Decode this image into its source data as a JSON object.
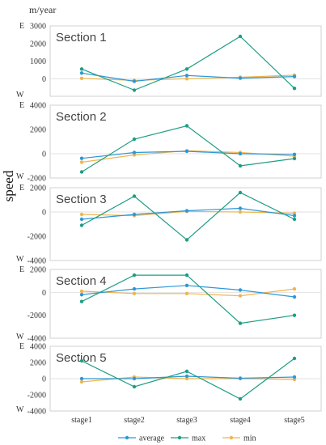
{
  "chart_data": {
    "type": "line",
    "unit_label": "m/year",
    "ylabel": "speed",
    "categories": [
      "stage1",
      "stage2",
      "stage3",
      "stage4",
      "stage5"
    ],
    "legend": [
      "average",
      "max",
      "min"
    ],
    "colors": {
      "average": "#2E97D6",
      "max": "#1E9E84",
      "min": "#F0B54C"
    },
    "direction_labels": {
      "top": "E",
      "bottom": "W"
    },
    "panels": [
      {
        "title": "Section 1",
        "ylim": [
          -1000,
          3000
        ],
        "ticks": [
          0,
          1000,
          2000,
          3000
        ],
        "show_bottom_tick": false,
        "series": [
          {
            "name": "average",
            "values": [
              320,
              -150,
              180,
              30,
              120
            ]
          },
          {
            "name": "max",
            "values": [
              550,
              -650,
              550,
              2400,
              -550
            ]
          },
          {
            "name": "min",
            "values": [
              20,
              -100,
              0,
              80,
              200
            ]
          }
        ]
      },
      {
        "title": "Section 2",
        "ylim": [
          -2000,
          4000
        ],
        "ticks": [
          -2000,
          0,
          2000,
          4000
        ],
        "show_bottom_tick": true,
        "series": [
          {
            "name": "average",
            "values": [
              -380,
              100,
              200,
              0,
              -50
            ]
          },
          {
            "name": "max",
            "values": [
              -1500,
              1200,
              2300,
              -1000,
              -400
            ]
          },
          {
            "name": "min",
            "values": [
              -700,
              -100,
              250,
              100,
              -200
            ]
          }
        ]
      },
      {
        "title": "Section 3",
        "ylim": [
          -4000,
          2000
        ],
        "ticks": [
          -4000,
          -2000,
          0,
          2000
        ],
        "show_bottom_tick": true,
        "series": [
          {
            "name": "average",
            "values": [
              -600,
              -200,
              100,
              300,
              -300
            ]
          },
          {
            "name": "max",
            "values": [
              -1100,
              1300,
              -2300,
              1600,
              -600
            ]
          },
          {
            "name": "min",
            "values": [
              -200,
              -300,
              50,
              0,
              -100
            ]
          }
        ]
      },
      {
        "title": "Section 4",
        "ylim": [
          -4000,
          2000
        ],
        "ticks": [
          -4000,
          -2000,
          0,
          2000
        ],
        "show_bottom_tick": true,
        "series": [
          {
            "name": "average",
            "values": [
              -200,
              300,
              600,
              200,
              -400
            ]
          },
          {
            "name": "max",
            "values": [
              -800,
              1500,
              1500,
              -2700,
              -2000
            ]
          },
          {
            "name": "min",
            "values": [
              100,
              -100,
              -100,
              -300,
              300
            ]
          }
        ]
      },
      {
        "title": "Section 5",
        "ylim": [
          -4000,
          4000
        ],
        "ticks": [
          -4000,
          -2000,
          0,
          2000,
          4000
        ],
        "show_bottom_tick": true,
        "series": [
          {
            "name": "average",
            "values": [
              0,
              0,
              300,
              50,
              200
            ]
          },
          {
            "name": "max",
            "values": [
              2200,
              -1000,
              900,
              -2500,
              2500
            ]
          },
          {
            "name": "min",
            "values": [
              -400,
              200,
              0,
              0,
              -100
            ]
          }
        ]
      }
    ]
  }
}
